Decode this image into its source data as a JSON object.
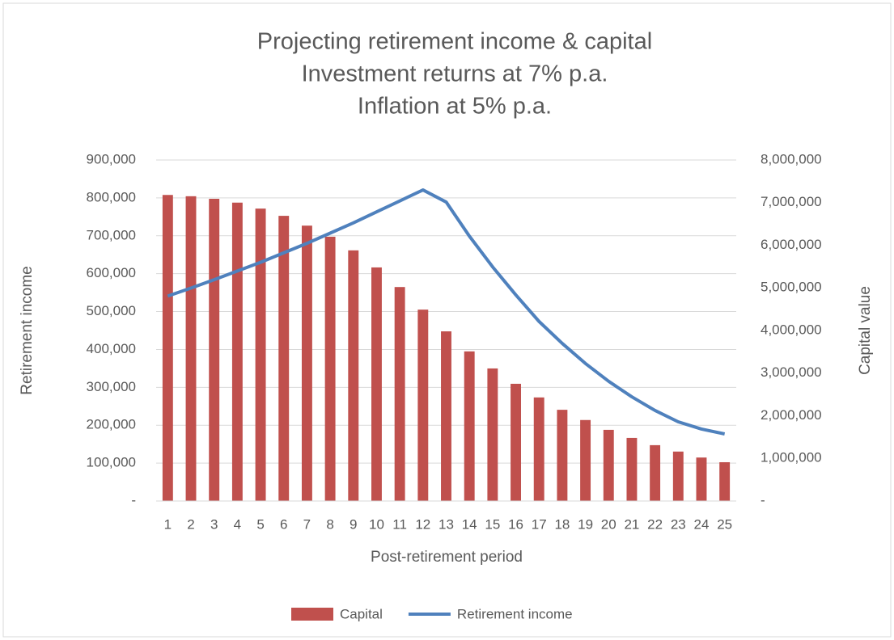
{
  "chart_data": {
    "type": "bar_line",
    "title": "Projecting retirement income & capital",
    "subtitle": [
      "Investment returns at 7% p.a.",
      "Inflation at 5% p.a."
    ],
    "x_label": "Post-retirement period",
    "y_label": "Retirement income",
    "y2_label": "Capital value",
    "categories": [
      "1",
      "2",
      "3",
      "4",
      "5",
      "6",
      "7",
      "8",
      "9",
      "10",
      "11",
      "12",
      "13",
      "14",
      "15",
      "16",
      "17",
      "18",
      "19",
      "20",
      "21",
      "22",
      "23",
      "24",
      "25"
    ],
    "series": [
      {
        "name": "Capital",
        "type": "bar",
        "axis": "y2",
        "color": "#c0504d",
        "values": [
          7180000,
          7150000,
          7090000,
          7000000,
          6860000,
          6690000,
          6460000,
          6200000,
          5880000,
          5480000,
          5020000,
          4490000,
          3980000,
          3510000,
          3110000,
          2750000,
          2430000,
          2140000,
          1900000,
          1670000,
          1480000,
          1310000,
          1160000,
          1020000,
          910000
        ]
      },
      {
        "name": "Retirement income",
        "type": "line",
        "axis": "y",
        "color": "#4f81bd",
        "values": [
          541000,
          562000,
          584000,
          607000,
          630000,
          655000,
          680000,
          707000,
          734000,
          763000,
          792000,
          821000,
          789000,
          699000,
          618000,
          544000,
          474000,
          416000,
          363000,
          316000,
          275000,
          239000,
          209000,
          190000,
          177000
        ]
      }
    ],
    "ylim": [
      0,
      900000
    ],
    "yticks": [
      {
        "value": 0,
        "label": "-"
      },
      {
        "value": 100000,
        "label": "100,000"
      },
      {
        "value": 200000,
        "label": "200,000"
      },
      {
        "value": 300000,
        "label": "300,000"
      },
      {
        "value": 400000,
        "label": "400,000"
      },
      {
        "value": 500000,
        "label": "500,000"
      },
      {
        "value": 600000,
        "label": "600,000"
      },
      {
        "value": 700000,
        "label": "700,000"
      },
      {
        "value": 800000,
        "label": "800,000"
      },
      {
        "value": 900000,
        "label": "900,000"
      }
    ],
    "y2lim": [
      0,
      8000000
    ],
    "y2ticks": [
      {
        "value": 0,
        "label": "-"
      },
      {
        "value": 1000000,
        "label": "1,000,000"
      },
      {
        "value": 2000000,
        "label": "2,000,000"
      },
      {
        "value": 3000000,
        "label": "3,000,000"
      },
      {
        "value": 4000000,
        "label": "4,000,000"
      },
      {
        "value": 5000000,
        "label": "5,000,000"
      },
      {
        "value": 6000000,
        "label": "6,000,000"
      },
      {
        "value": 7000000,
        "label": "7,000,000"
      },
      {
        "value": 8000000,
        "label": "8,000,000"
      }
    ],
    "grid": true,
    "legend": "bottom"
  }
}
